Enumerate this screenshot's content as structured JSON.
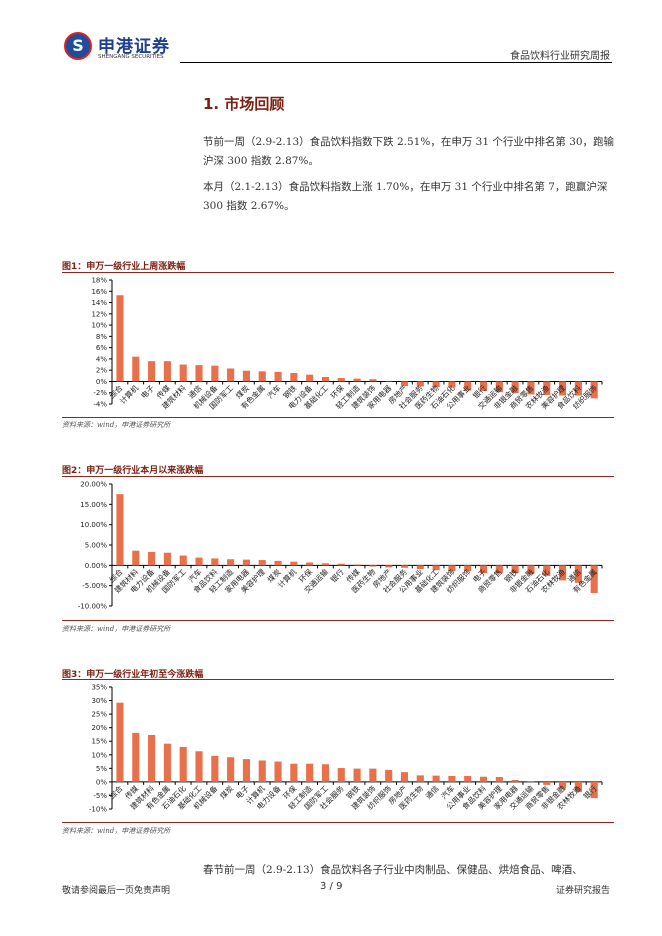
{
  "header": {
    "logo_cn": "申港证券",
    "logo_en": "SHENGANG SECURITIES",
    "logo_mark": "S",
    "doc_type": "食品饮料行业研究周报"
  },
  "section": {
    "title": "1. 市场回顾",
    "para1": "节前一周（2.9-2.13）食品饮料指数下跌 2.51%，在申万 31 个行业中排名第 30，跑输沪深 300 指数 2.87%。",
    "para2": "本月（2.1-2.13）食品饮料指数上涨 1.70%，在申万 31 个行业中排名第 7，跑赢沪深 300 指数 2.67%。"
  },
  "figures": [
    {
      "title": "图1：申万一级行业上周涨跌幅",
      "source": "资料来源：wind，申港证券研究所"
    },
    {
      "title": "图2：申万一级行业本月以来涨跌幅",
      "source": "资料来源：wind，申港证券研究所"
    },
    {
      "title": "图3：申万一级行业年初至今涨跌幅",
      "source": "资料来源：wind，申港证券研究所"
    }
  ],
  "chart_data": [
    {
      "type": "bar",
      "title": "申万一级行业上周涨跌幅",
      "bar_color": "#e8704a",
      "ylim": [
        -4,
        18
      ],
      "yticks": [
        -4,
        -2,
        0,
        2,
        4,
        6,
        8,
        10,
        12,
        14,
        16,
        18
      ],
      "tick_format": "0%",
      "categories": [
        "综合",
        "计算机",
        "电子",
        "传媒",
        "建筑材料",
        "通信",
        "机械设备",
        "国防军工",
        "煤炭",
        "有色金属",
        "汽车",
        "钢铁",
        "电力设备",
        "基础化工",
        "环保",
        "轻工制造",
        "建筑装饰",
        "家用电器",
        "房地产",
        "社会服务",
        "医药生物",
        "石油石化",
        "公用事业",
        "银行",
        "交通运输",
        "非银金融",
        "商贸零售",
        "农林牧渔",
        "美容护理",
        "食品饮料",
        "纺织服饰"
      ],
      "values": [
        15.3,
        4.4,
        3.6,
        3.6,
        3.0,
        2.9,
        2.8,
        2.3,
        1.9,
        1.8,
        1.7,
        1.5,
        1.2,
        0.8,
        0.6,
        0.5,
        0.4,
        0.1,
        -0.8,
        -0.9,
        -1.0,
        -1.1,
        -1.6,
        -1.7,
        -1.9,
        -2.1,
        -2.3,
        -2.4,
        -2.5,
        -2.51,
        -3.0
      ]
    },
    {
      "type": "bar",
      "title": "申万一级行业本月以来涨跌幅",
      "bar_color": "#e8704a",
      "ylim": [
        -10,
        20
      ],
      "yticks": [
        -10,
        -5,
        0,
        5,
        10,
        15,
        20
      ],
      "tick_format": "0.00%",
      "categories": [
        "综合",
        "建筑材料",
        "电力设备",
        "机械设备",
        "国防军工",
        "汽车",
        "食品饮料",
        "轻工制造",
        "家用电器",
        "美容护理",
        "煤炭",
        "计算机",
        "环保",
        "交通运输",
        "银行",
        "传媒",
        "医药生物",
        "房地产",
        "社会服务",
        "公用事业",
        "基础化工",
        "建筑装饰",
        "纺织服饰",
        "电子",
        "商贸零售",
        "钢铁",
        "非银金融",
        "石油石化",
        "农林牧渔",
        "通信",
        "有色金属"
      ],
      "values": [
        17.5,
        3.6,
        3.3,
        3.1,
        2.4,
        1.9,
        1.7,
        1.5,
        1.4,
        1.3,
        1.1,
        0.9,
        0.7,
        0.5,
        0.4,
        0.2,
        -0.3,
        -0.5,
        -0.6,
        -0.9,
        -1.2,
        -1.4,
        -1.4,
        -1.9,
        -1.9,
        -1.9,
        -2.2,
        -2.6,
        -3.7,
        -4.3,
        -6.8
      ]
    },
    {
      "type": "bar",
      "title": "申万一级行业年初至今涨跌幅",
      "bar_color": "#e8704a",
      "ylim": [
        -10,
        35
      ],
      "yticks": [
        -10,
        -5,
        0,
        5,
        10,
        15,
        20,
        25,
        30,
        35
      ],
      "tick_format": "0%",
      "categories": [
        "综合",
        "传媒",
        "建筑材料",
        "有色金属",
        "石油石化",
        "基础化工",
        "机械设备",
        "煤炭",
        "电子",
        "计算机",
        "电力设备",
        "环保",
        "轻工制造",
        "国防军工",
        "社会服务",
        "钢铁",
        "建筑装饰",
        "纺织服饰",
        "房地产",
        "医药生物",
        "通信",
        "汽车",
        "公用事业",
        "食品饮料",
        "美容护理",
        "家用电器",
        "交通运输",
        "商贸零售",
        "非银金融",
        "农林牧渔",
        "银行"
      ],
      "values": [
        29.2,
        18.1,
        17.3,
        14.1,
        12.9,
        11.3,
        9.6,
        9.1,
        8.4,
        7.9,
        7.5,
        6.7,
        6.7,
        6.5,
        5.1,
        4.9,
        4.9,
        4.4,
        3.6,
        2.4,
        2.3,
        2.2,
        2.2,
        1.9,
        1.8,
        0.7,
        0.2,
        -1.1,
        -2.5,
        -3.7,
        -6.0
      ]
    }
  ],
  "trailing_text": "春节前一周（2.9-2.13）食品饮料各子行业中肉制品、保健品、烘焙食品、啤酒、",
  "footer": {
    "left": "敬请参阅最后一页免责声明",
    "page": "3 / 9",
    "right": "证券研究报告"
  }
}
